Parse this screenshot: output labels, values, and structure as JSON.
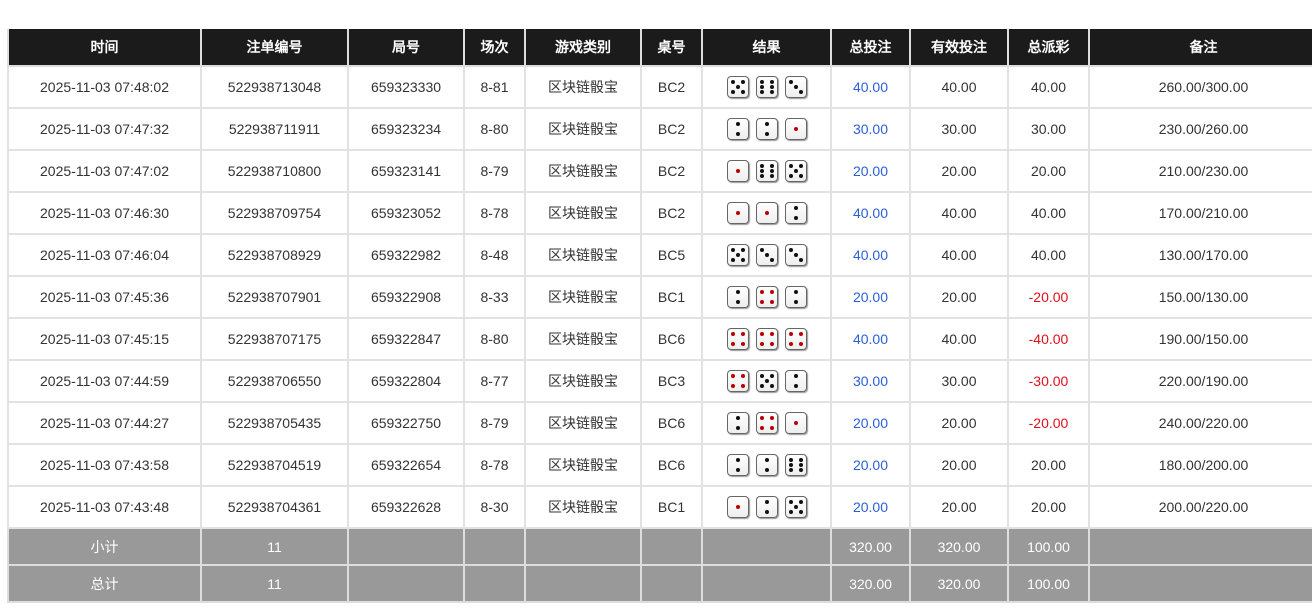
{
  "headers": [
    "时间",
    "注单编号",
    "局号",
    "场次",
    "游戏类别",
    "桌号",
    "结果",
    "总投注",
    "有效投注",
    "总派彩",
    "备注"
  ],
  "colors": {
    "header_bg": "#1b1b1b",
    "summary_bg": "#999999",
    "positive_bet": "#2a5fd8",
    "negative_payout": "#e0101a"
  },
  "rows": [
    {
      "time": "2025-11-03 07:48:02",
      "order": "522938713048",
      "round": "659323330",
      "session": "8-81",
      "game": "区块链骰宝",
      "table": "BC2",
      "dice": [
        5,
        6,
        3
      ],
      "bet": "40.00",
      "valid": "40.00",
      "payout": "40.00",
      "note": "260.00/300.00"
    },
    {
      "time": "2025-11-03 07:47:32",
      "order": "522938711911",
      "round": "659323234",
      "session": "8-80",
      "game": "区块链骰宝",
      "table": "BC2",
      "dice": [
        2,
        2,
        1
      ],
      "bet": "30.00",
      "valid": "30.00",
      "payout": "30.00",
      "note": "230.00/260.00"
    },
    {
      "time": "2025-11-03 07:47:02",
      "order": "522938710800",
      "round": "659323141",
      "session": "8-79",
      "game": "区块链骰宝",
      "table": "BC2",
      "dice": [
        1,
        6,
        5
      ],
      "bet": "20.00",
      "valid": "20.00",
      "payout": "20.00",
      "note": "210.00/230.00"
    },
    {
      "time": "2025-11-03 07:46:30",
      "order": "522938709754",
      "round": "659323052",
      "session": "8-78",
      "game": "区块链骰宝",
      "table": "BC2",
      "dice": [
        1,
        1,
        2
      ],
      "bet": "40.00",
      "valid": "40.00",
      "payout": "40.00",
      "note": "170.00/210.00"
    },
    {
      "time": "2025-11-03 07:46:04",
      "order": "522938708929",
      "round": "659322982",
      "session": "8-48",
      "game": "区块链骰宝",
      "table": "BC5",
      "dice": [
        5,
        3,
        3
      ],
      "bet": "40.00",
      "valid": "40.00",
      "payout": "40.00",
      "note": "130.00/170.00"
    },
    {
      "time": "2025-11-03 07:45:36",
      "order": "522938707901",
      "round": "659322908",
      "session": "8-33",
      "game": "区块链骰宝",
      "table": "BC1",
      "dice": [
        2,
        4,
        2
      ],
      "bet": "20.00",
      "valid": "20.00",
      "payout": "-20.00",
      "note": "150.00/130.00"
    },
    {
      "time": "2025-11-03 07:45:15",
      "order": "522938707175",
      "round": "659322847",
      "session": "8-80",
      "game": "区块链骰宝",
      "table": "BC6",
      "dice": [
        4,
        4,
        4
      ],
      "bet": "40.00",
      "valid": "40.00",
      "payout": "-40.00",
      "note": "190.00/150.00"
    },
    {
      "time": "2025-11-03 07:44:59",
      "order": "522938706550",
      "round": "659322804",
      "session": "8-77",
      "game": "区块链骰宝",
      "table": "BC3",
      "dice": [
        4,
        5,
        2
      ],
      "bet": "30.00",
      "valid": "30.00",
      "payout": "-30.00",
      "note": "220.00/190.00"
    },
    {
      "time": "2025-11-03 07:44:27",
      "order": "522938705435",
      "round": "659322750",
      "session": "8-79",
      "game": "区块链骰宝",
      "table": "BC6",
      "dice": [
        2,
        4,
        1
      ],
      "bet": "20.00",
      "valid": "20.00",
      "payout": "-20.00",
      "note": "240.00/220.00"
    },
    {
      "time": "2025-11-03 07:43:58",
      "order": "522938704519",
      "round": "659322654",
      "session": "8-78",
      "game": "区块链骰宝",
      "table": "BC6",
      "dice": [
        2,
        2,
        6
      ],
      "bet": "20.00",
      "valid": "20.00",
      "payout": "20.00",
      "note": "180.00/200.00"
    },
    {
      "time": "2025-11-03 07:43:48",
      "order": "522938704361",
      "round": "659322628",
      "session": "8-30",
      "game": "区块链骰宝",
      "table": "BC1",
      "dice": [
        1,
        2,
        5
      ],
      "bet": "20.00",
      "valid": "20.00",
      "payout": "20.00",
      "note": "200.00/220.00"
    }
  ],
  "subtotal": {
    "label": "小计",
    "count": "11",
    "bet": "320.00",
    "valid": "320.00",
    "payout": "100.00"
  },
  "total": {
    "label": "总计",
    "count": "11",
    "bet": "320.00",
    "valid": "320.00",
    "payout": "100.00"
  }
}
